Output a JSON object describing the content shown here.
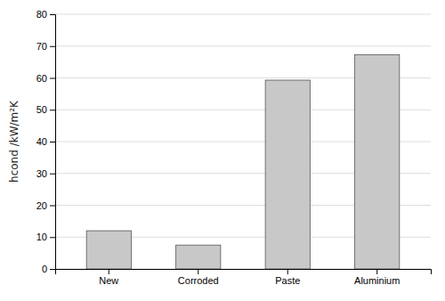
{
  "chart_data": {
    "type": "bar",
    "categories": [
      "New",
      "Corroded",
      "Paste",
      "Aluminium"
    ],
    "values": [
      12.0,
      7.5,
      59.3,
      67.3
    ],
    "color": "#c8c8c8",
    "ylabel": "hcond /kW/m²K",
    "ylim": [
      0,
      80
    ],
    "yticks": [
      0,
      10,
      20,
      30,
      40,
      50,
      60,
      70,
      80
    ],
    "grid": true
  }
}
